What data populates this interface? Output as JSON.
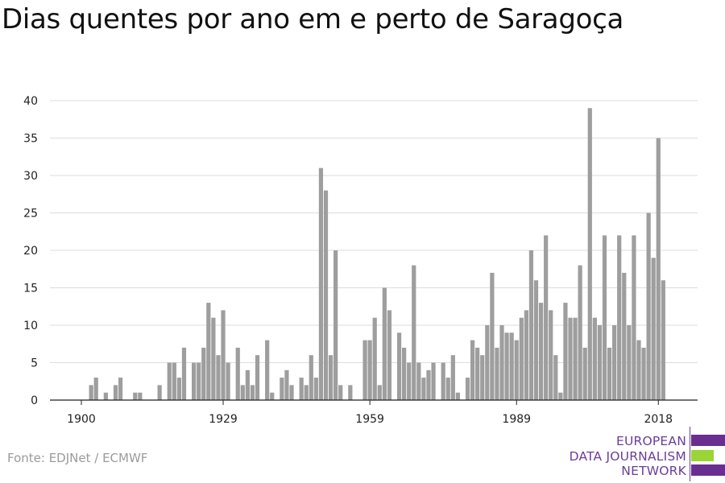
{
  "title": "Dias quentes por ano em e perto de Saragoça",
  "source": "Fonte: EDJNet / ECMWF",
  "logo": {
    "line1": "EUROPEAN",
    "line2": "DATA JOURNALISM",
    "line3": "NETWORK",
    "purple": "#6a2e91",
    "green": "#9bd435"
  },
  "chart_data": {
    "type": "bar",
    "title": "Dias quentes por ano em e perto de Saragoça",
    "xlabel": "",
    "ylabel": "",
    "ylim": [
      0,
      40
    ],
    "yticks": [
      0,
      5,
      10,
      15,
      20,
      25,
      30,
      35,
      40
    ],
    "xticks": [
      1900,
      1929,
      1959,
      1989,
      2018
    ],
    "grid": true,
    "bar_color": "#9e9e9e",
    "x": [
      1900,
      1901,
      1902,
      1903,
      1904,
      1905,
      1906,
      1907,
      1908,
      1909,
      1910,
      1911,
      1912,
      1913,
      1914,
      1915,
      1916,
      1917,
      1918,
      1919,
      1920,
      1921,
      1922,
      1923,
      1924,
      1925,
      1926,
      1927,
      1928,
      1929,
      1930,
      1931,
      1932,
      1933,
      1934,
      1935,
      1936,
      1937,
      1938,
      1939,
      1940,
      1941,
      1942,
      1943,
      1944,
      1945,
      1946,
      1947,
      1948,
      1949,
      1950,
      1951,
      1952,
      1953,
      1954,
      1955,
      1956,
      1957,
      1958,
      1959,
      1960,
      1961,
      1962,
      1963,
      1964,
      1965,
      1966,
      1967,
      1968,
      1969,
      1970,
      1971,
      1972,
      1973,
      1974,
      1975,
      1976,
      1977,
      1978,
      1979,
      1980,
      1981,
      1982,
      1983,
      1984,
      1985,
      1986,
      1987,
      1988,
      1989,
      1990,
      1991,
      1992,
      1993,
      1994,
      1995,
      1996,
      1997,
      1998,
      1999,
      2000,
      2001,
      2002,
      2003,
      2004,
      2005,
      2006,
      2007,
      2008,
      2009,
      2010,
      2011,
      2012,
      2013,
      2014,
      2015,
      2016,
      2017,
      2018,
      2019
    ],
    "values": [
      0,
      0,
      2,
      3,
      0,
      1,
      0,
      2,
      3,
      0,
      0,
      1,
      1,
      0,
      0,
      0,
      2,
      0,
      5,
      5,
      3,
      7,
      0,
      5,
      5,
      7,
      13,
      11,
      6,
      12,
      5,
      0,
      7,
      2,
      4,
      2,
      6,
      0,
      8,
      1,
      0,
      3,
      4,
      2,
      0,
      3,
      2,
      6,
      3,
      31,
      28,
      6,
      20,
      2,
      0,
      2,
      0,
      0,
      8,
      8,
      11,
      2,
      15,
      12,
      0,
      9,
      7,
      5,
      18,
      5,
      3,
      4,
      5,
      0,
      5,
      3,
      6,
      1,
      0,
      3,
      8,
      7,
      6,
      10,
      17,
      7,
      10,
      9,
      9,
      8,
      11,
      12,
      20,
      16,
      13,
      22,
      12,
      6,
      1,
      13,
      11,
      11,
      18,
      7,
      39,
      11,
      10,
      22,
      7,
      10,
      22,
      17,
      10,
      22,
      8,
      7,
      25,
      19,
      35,
      16
    ]
  }
}
